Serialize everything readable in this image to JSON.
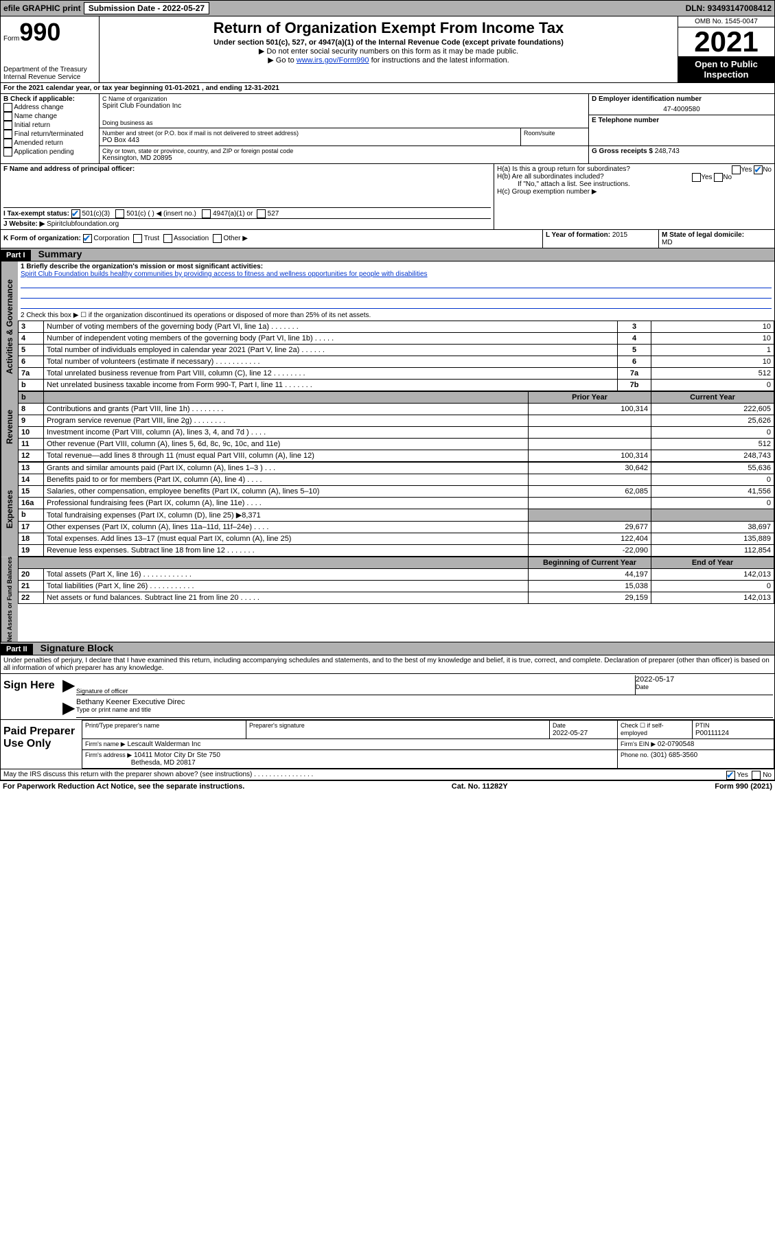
{
  "topbar": {
    "efile": "efile GRAPHIC print",
    "sub_label": "Submission Date - 2022-05-27",
    "dln": "DLN: 93493147008412"
  },
  "header": {
    "form_label": "Form",
    "form_number": "990",
    "dept": "Department of the Treasury",
    "irs": "Internal Revenue Service",
    "title": "Return of Organization Exempt From Income Tax",
    "subtitle": "Under section 501(c), 527, or 4947(a)(1) of the Internal Revenue Code (except private foundations)",
    "instr1": "▶ Do not enter social security numbers on this form as it may be made public.",
    "instr2_pre": "▶ Go to ",
    "instr2_link": "www.irs.gov/Form990",
    "instr2_post": " for instructions and the latest information.",
    "omb": "OMB No. 1545-0047",
    "year": "2021",
    "open": "Open to Public Inspection"
  },
  "orginfo": {
    "period": "For the 2021 calendar year, or tax year beginning 01-01-2021    , and ending 12-31-2021",
    "b_label": "B Check if applicable:",
    "b_items": [
      "Address change",
      "Name change",
      "Initial return",
      "Final return/terminated",
      "Amended return",
      "Application pending"
    ],
    "c_label": "C Name of organization",
    "org_name": "Spirit Club Foundation Inc",
    "dba_label": "Doing business as",
    "addr_label": "Number and street (or P.O. box if mail is not delivered to street address)",
    "room_label": "Room/suite",
    "addr": "PO Box 443",
    "city_label": "City or town, state or province, country, and ZIP or foreign postal code",
    "city": "Kensington, MD  20895",
    "d_label": "D Employer identification number",
    "ein": "47-4009580",
    "e_label": "E Telephone number",
    "g_label": "G Gross receipts $",
    "gross": "248,743",
    "f_label": "F  Name and address of principal officer:",
    "ha": "H(a)  Is this a group return for subordinates?",
    "hb": "H(b)  Are all subordinates included?",
    "hb_note": "If \"No,\" attach a list. See instructions.",
    "hc": "H(c)  Group exemption number ▶",
    "i_label": "I    Tax-exempt status:",
    "i_501c3": "501(c)(3)",
    "i_501c": "501(c) (  ) ◀ (insert no.)",
    "i_4947": "4947(a)(1) or",
    "i_527": "527",
    "j_label": "J   Website: ▶",
    "website": "Spiritclubfoundation.org",
    "k_label": "K Form of organization:",
    "k_corp": "Corporation",
    "k_trust": "Trust",
    "k_assoc": "Association",
    "k_other": "Other ▶",
    "l_label": "L Year of formation:",
    "l_val": "2015",
    "m_label": "M State of legal domicile:",
    "m_val": "MD",
    "yes": "Yes",
    "no": "No"
  },
  "part1": {
    "header": "Part I",
    "title": "Summary",
    "line1_label": "1   Briefly describe the organization's mission or most significant activities:",
    "mission": "Spirit Club Foundation builds healthy communities by providing access to fitness and wellness opportunities for people with disabilities",
    "line2": "2   Check this box ▶ ☐  if the organization discontinued its operations or disposed of more than 25% of its net assets.",
    "rows_top": [
      {
        "n": "3",
        "label": "Number of voting members of the governing body (Part VI, line 1a)   .   .   .   .   .   .   .",
        "box": "3",
        "val": "10"
      },
      {
        "n": "4",
        "label": "Number of independent voting members of the governing body (Part VI, line 1b)   .   .   .   .   .",
        "box": "4",
        "val": "10"
      },
      {
        "n": "5",
        "label": "Total number of individuals employed in calendar year 2021 (Part V, line 2a)   .   .   .   .   .   .",
        "box": "5",
        "val": "1"
      },
      {
        "n": "6",
        "label": "Total number of volunteers (estimate if necessary)   .   .   .   .   .   .   .   .   .   .   .",
        "box": "6",
        "val": "10"
      },
      {
        "n": "7a",
        "label": "Total unrelated business revenue from Part VIII, column (C), line 12  .   .   .   .   .   .   .   .",
        "box": "7a",
        "val": "512"
      },
      {
        "n": "b",
        "label": "Net unrelated business taxable income from Form 990-T, Part I, line 11  .   .   .   .   .   .   .",
        "box": "7b",
        "val": "0"
      }
    ],
    "prior_label": "Prior Year",
    "current_label": "Current Year",
    "rows_rev": [
      {
        "n": "8",
        "label": "Contributions and grants (Part VIII, line 1h)   .   .   .   .   .   .   .   .",
        "prior": "100,314",
        "cur": "222,605"
      },
      {
        "n": "9",
        "label": "Program service revenue (Part VIII, line 2g)   .   .   .   .   .   .   .   .",
        "prior": "",
        "cur": "25,626"
      },
      {
        "n": "10",
        "label": "Investment income (Part VIII, column (A), lines 3, 4, and 7d )   .   .   .   .",
        "prior": "",
        "cur": "0"
      },
      {
        "n": "11",
        "label": "Other revenue (Part VIII, column (A), lines 5, 6d, 8c, 9c, 10c, and 11e)",
        "prior": "",
        "cur": "512"
      },
      {
        "n": "12",
        "label": "Total revenue—add lines 8 through 11 (must equal Part VIII, column (A), line 12)",
        "prior": "100,314",
        "cur": "248,743"
      }
    ],
    "rows_exp": [
      {
        "n": "13",
        "label": "Grants and similar amounts paid (Part IX, column (A), lines 1–3 )   .   .   .",
        "prior": "30,642",
        "cur": "55,636"
      },
      {
        "n": "14",
        "label": "Benefits paid to or for members (Part IX, column (A), line 4)   .   .   .   .",
        "prior": "",
        "cur": "0"
      },
      {
        "n": "15",
        "label": "Salaries, other compensation, employee benefits (Part IX, column (A), lines 5–10)",
        "prior": "62,085",
        "cur": "41,556"
      },
      {
        "n": "16a",
        "label": "Professional fundraising fees (Part IX, column (A), line 11e)   .   .   .   .",
        "prior": "",
        "cur": "0"
      },
      {
        "n": "b",
        "label": "Total fundraising expenses (Part IX, column (D), line 25) ▶8,371",
        "prior": "shaded",
        "cur": "shaded"
      },
      {
        "n": "17",
        "label": "Other expenses (Part IX, column (A), lines 11a–11d, 11f–24e)   .   .   .   .",
        "prior": "29,677",
        "cur": "38,697"
      },
      {
        "n": "18",
        "label": "Total expenses. Add lines 13–17 (must equal Part IX, column (A), line 25)",
        "prior": "122,404",
        "cur": "135,889"
      },
      {
        "n": "19",
        "label": "Revenue less expenses. Subtract line 18 from line 12   .   .   .   .   .   .   .",
        "prior": "-22,090",
        "cur": "112,854"
      }
    ],
    "beg_label": "Beginning of Current Year",
    "end_label": "End of Year",
    "rows_net": [
      {
        "n": "20",
        "label": "Total assets (Part X, line 16)   .   .   .   .   .   .   .   .   .   .   .   .",
        "prior": "44,197",
        "cur": "142,013"
      },
      {
        "n": "21",
        "label": "Total liabilities (Part X, line 26)   .   .   .   .   .   .   .   .   .   .   .",
        "prior": "15,038",
        "cur": "0"
      },
      {
        "n": "22",
        "label": "Net assets or fund balances. Subtract line 21 from line 20   .   .   .   .   .",
        "prior": "29,159",
        "cur": "142,013"
      }
    ],
    "vert_gov": "Activities & Governance",
    "vert_rev": "Revenue",
    "vert_exp": "Expenses",
    "vert_net": "Net Assets or Fund Balances"
  },
  "part2": {
    "header": "Part II",
    "title": "Signature Block",
    "perjury": "Under penalties of perjury, I declare that I have examined this return, including accompanying schedules and statements, and to the best of my knowledge and belief, it is true, correct, and complete. Declaration of preparer (other than officer) is based on all information of which preparer has any knowledge.",
    "sign_here": "Sign Here",
    "sig_officer": "Signature of officer",
    "sig_date": "2022-05-17",
    "date_label": "Date",
    "officer_name": "Bethany Keener Executive Direc",
    "type_name": "Type or print name and title",
    "paid_prep": "Paid Preparer Use Only",
    "prep_name_label": "Print/Type preparer's name",
    "prep_sig_label": "Preparer's signature",
    "prep_date_label": "Date",
    "prep_date": "2022-05-27",
    "check_self": "Check ☐ if self-employed",
    "ptin_label": "PTIN",
    "ptin": "P00111124",
    "firm_name_label": "Firm's name    ▶",
    "firm_name": "Lescault Walderman Inc",
    "firm_ein_label": "Firm's EIN ▶",
    "firm_ein": "02-0790548",
    "firm_addr_label": "Firm's address ▶",
    "firm_addr1": "10411 Motor City Dr Ste 750",
    "firm_addr2": "Bethesda, MD  20817",
    "phone_label": "Phone no.",
    "phone": "(301) 685-3560",
    "discuss": "May the IRS discuss this return with the preparer shown above? (see instructions)   .   .   .   .   .   .   .   .   .   .   .   .   .   .   .   ."
  },
  "footer": {
    "paperwork": "For Paperwork Reduction Act Notice, see the separate instructions.",
    "cat": "Cat. No. 11282Y",
    "form": "Form 990 (2021)"
  }
}
